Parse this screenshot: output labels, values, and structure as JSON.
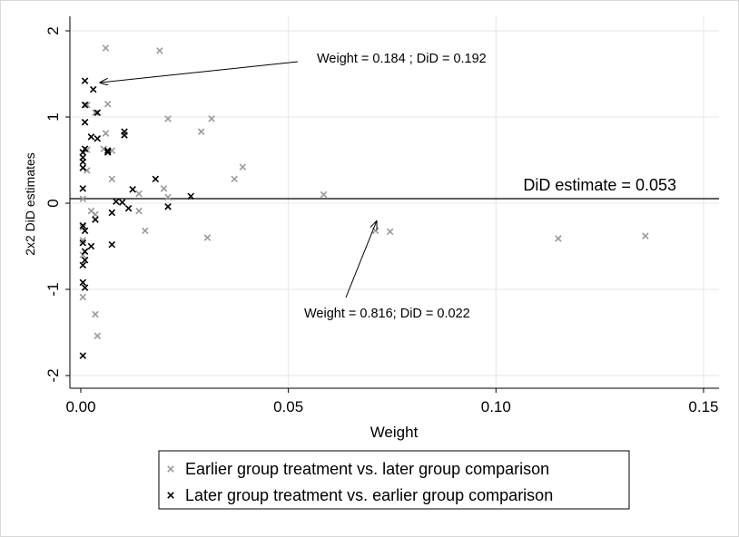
{
  "chart_data": {
    "type": "scatter",
    "xlabel": "Weight",
    "ylabel": "2x2 DiD estimates",
    "xlim": [
      0,
      0.15
    ],
    "ylim": [
      -2,
      2
    ],
    "x_ticks": [
      {
        "value": 0,
        "label": "0.00"
      },
      {
        "value": 0.05,
        "label": "0.05"
      },
      {
        "value": 0.1,
        "label": "0.10"
      },
      {
        "value": 0.15,
        "label": "0.15"
      }
    ],
    "y_ticks": [
      {
        "value": -2,
        "label": "-2"
      },
      {
        "value": -1,
        "label": "-1"
      },
      {
        "value": 0,
        "label": "0"
      },
      {
        "value": 1,
        "label": "1"
      },
      {
        "value": 2,
        "label": "2"
      }
    ],
    "grid": true,
    "hline": {
      "y": 0.053,
      "label": "DiD estimate = 0.053"
    },
    "annotations": [
      {
        "text": "Weight = 0.184 ; DiD = 0.192",
        "arrow_to": [
          0.004,
          1.41
        ]
      },
      {
        "text": "Weight = 0.816; DiD = 0.022",
        "arrow_to": [
          0.071,
          -0.18
        ]
      }
    ],
    "legend_position": "bottom",
    "series": [
      {
        "name": "Earlier group treatment vs. later group comparison",
        "color": "#9a9a9a",
        "points": [
          [
            0.006,
            1.8
          ],
          [
            0.019,
            1.77
          ],
          [
            0.0065,
            1.15
          ],
          [
            0.0015,
            1.14
          ],
          [
            0.0035,
            1.05
          ],
          [
            0.021,
            0.98
          ],
          [
            0.0315,
            0.98
          ],
          [
            0.029,
            0.83
          ],
          [
            0.006,
            0.81
          ],
          [
            0.0025,
            0.77
          ],
          [
            0.0055,
            0.63
          ],
          [
            0.0015,
            0.62
          ],
          [
            0.0075,
            0.61
          ],
          [
            0.0015,
            0.38
          ],
          [
            0.039,
            0.42
          ],
          [
            0.037,
            0.28
          ],
          [
            0.0075,
            0.28
          ],
          [
            0.02,
            0.17
          ],
          [
            0.014,
            0.11
          ],
          [
            0.021,
            0.07
          ],
          [
            0.0585,
            0.1
          ],
          [
            0.0005,
            0.05
          ],
          [
            0.0025,
            -0.09
          ],
          [
            0.0035,
            -0.13
          ],
          [
            0.014,
            -0.09
          ],
          [
            0.0005,
            -0.28
          ],
          [
            0.0005,
            -0.43
          ],
          [
            0.0005,
            -0.6
          ],
          [
            0.0155,
            -0.32
          ],
          [
            0.0305,
            -0.4
          ],
          [
            0.071,
            -0.32
          ],
          [
            0.0745,
            -0.33
          ],
          [
            0.115,
            -0.41
          ],
          [
            0.136,
            -0.38
          ],
          [
            0.0005,
            -1.09
          ],
          [
            0.0035,
            -1.29
          ],
          [
            0.004,
            -1.54
          ]
        ]
      },
      {
        "name": "Later group treatment vs. earlier group comparison",
        "color": "#000000",
        "points": [
          [
            0.001,
            1.42
          ],
          [
            0.003,
            1.32
          ],
          [
            0.001,
            1.14
          ],
          [
            0.004,
            1.05
          ],
          [
            0.001,
            0.94
          ],
          [
            0.0105,
            0.83
          ],
          [
            0.0105,
            0.79
          ],
          [
            0.0025,
            0.77
          ],
          [
            0.004,
            0.75
          ],
          [
            0.001,
            0.63
          ],
          [
            0.0005,
            0.59
          ],
          [
            0.0065,
            0.61
          ],
          [
            0.0065,
            0.59
          ],
          [
            0.0005,
            0.53
          ],
          [
            0.0005,
            0.48
          ],
          [
            0.0005,
            0.41
          ],
          [
            0.018,
            0.28
          ],
          [
            0.0005,
            0.17
          ],
          [
            0.0125,
            0.16
          ],
          [
            0.0265,
            0.08
          ],
          [
            0.0085,
            0.02
          ],
          [
            0.01,
            0.01
          ],
          [
            0.0115,
            -0.06
          ],
          [
            0.021,
            -0.04
          ],
          [
            0.0075,
            -0.11
          ],
          [
            0.0035,
            -0.19
          ],
          [
            0.0005,
            -0.26
          ],
          [
            0.001,
            -0.32
          ],
          [
            0.0005,
            -0.46
          ],
          [
            0.0075,
            -0.48
          ],
          [
            0.0025,
            -0.5
          ],
          [
            0.001,
            -0.56
          ],
          [
            0.001,
            -0.66
          ],
          [
            0.0005,
            -0.72
          ],
          [
            0.0005,
            -0.92
          ],
          [
            0.001,
            -0.98
          ],
          [
            0.0005,
            -1.77
          ]
        ]
      }
    ]
  }
}
